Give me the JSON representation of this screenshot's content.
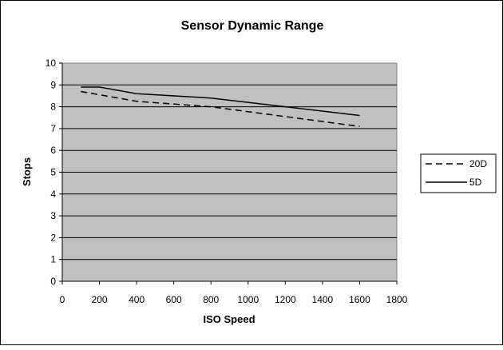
{
  "chart_data": {
    "type": "line",
    "title": "Sensor Dynamic Range",
    "xlabel": "ISO Speed",
    "ylabel": "Stops",
    "xlim": [
      0,
      1800
    ],
    "ylim": [
      0,
      10
    ],
    "xticks": [
      0,
      200,
      400,
      600,
      800,
      1000,
      1200,
      1400,
      1600,
      1800
    ],
    "yticks": [
      0,
      1,
      2,
      3,
      4,
      5,
      6,
      7,
      8,
      9,
      10
    ],
    "grid": "horizontal",
    "legend_position": "right",
    "plot_background": "#c0c0c0",
    "series": [
      {
        "name": "20D",
        "line_style": "dashed",
        "color": "#000000",
        "x": [
          100,
          200,
          400,
          800,
          1600
        ],
        "y": [
          8.7,
          8.55,
          8.25,
          8.0,
          7.1
        ]
      },
      {
        "name": "5D",
        "line_style": "solid",
        "color": "#000000",
        "x": [
          100,
          200,
          400,
          800,
          1600
        ],
        "y": [
          8.9,
          8.9,
          8.6,
          8.4,
          7.6
        ]
      }
    ]
  }
}
